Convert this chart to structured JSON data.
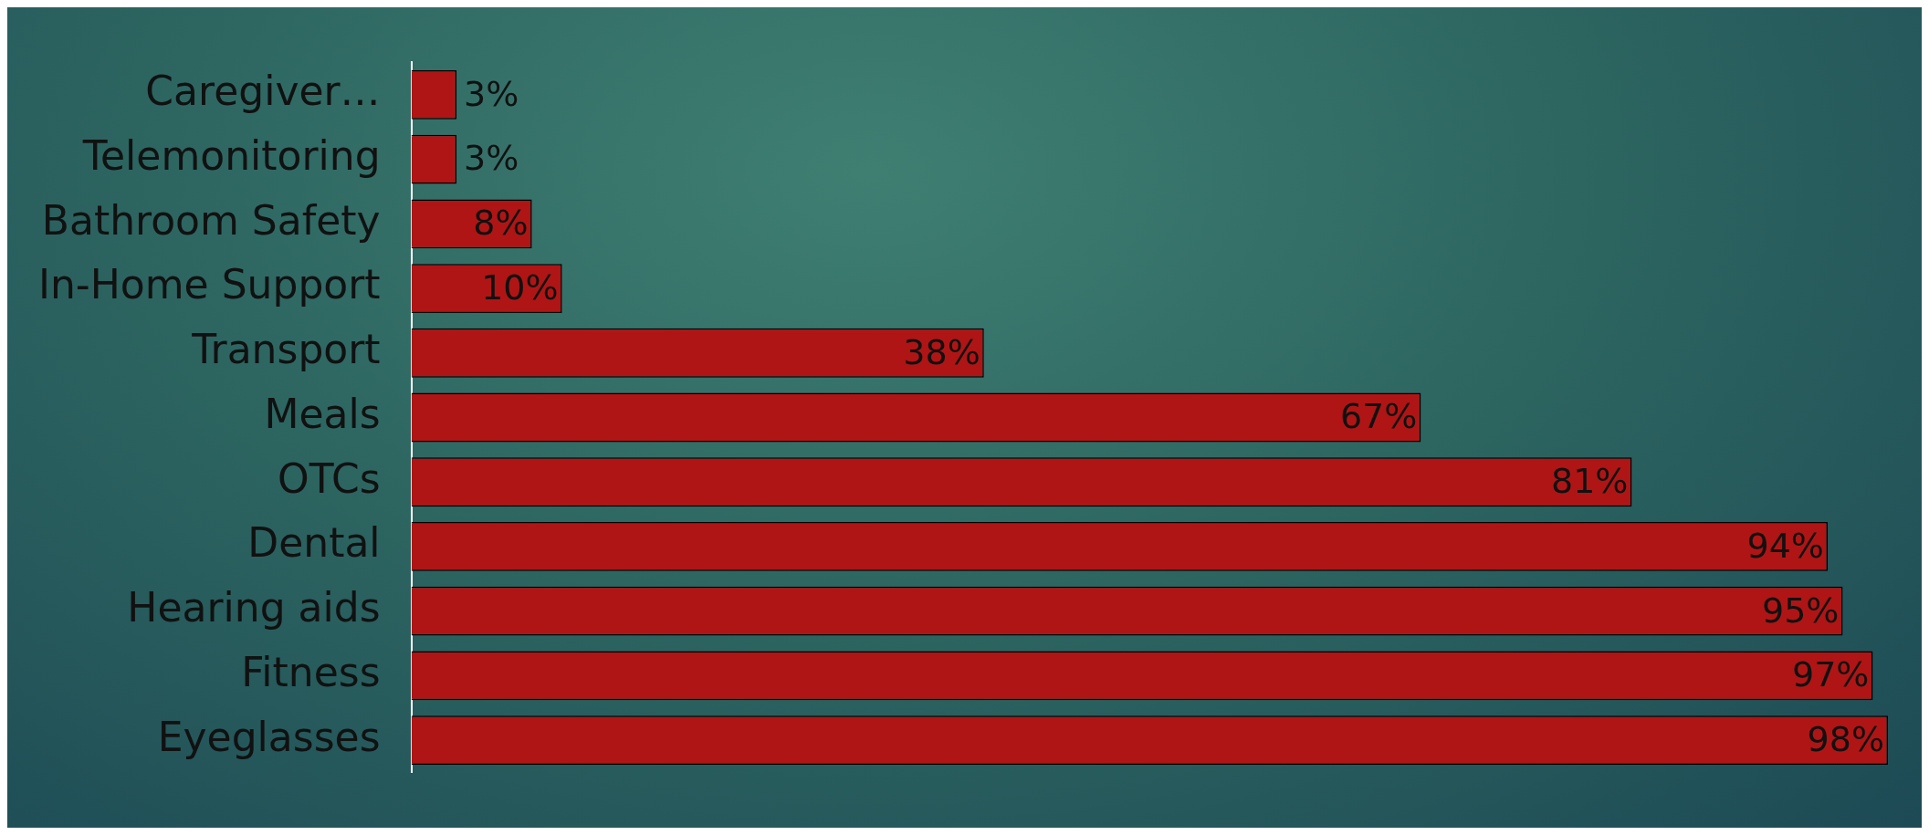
{
  "chart_data": {
    "type": "bar",
    "orientation": "horizontal",
    "categories": [
      "Caregiver…",
      "Telemonitoring",
      "Bathroom Safety",
      "In-Home Support",
      "Transport",
      "Meals",
      "OTCs",
      "Dental",
      "Hearing aids",
      "Fitness",
      "Eyeglasses"
    ],
    "values": [
      3,
      3,
      8,
      10,
      38,
      67,
      81,
      94,
      95,
      97,
      98
    ],
    "value_labels": [
      "3%",
      "3%",
      "8%",
      "10%",
      "38%",
      "67%",
      "81%",
      "94%",
      "95%",
      "97%",
      "98%"
    ],
    "color": "#b01515",
    "xlim": [
      0,
      100
    ],
    "tick_labels": "y",
    "grid": false,
    "legend": false
  }
}
